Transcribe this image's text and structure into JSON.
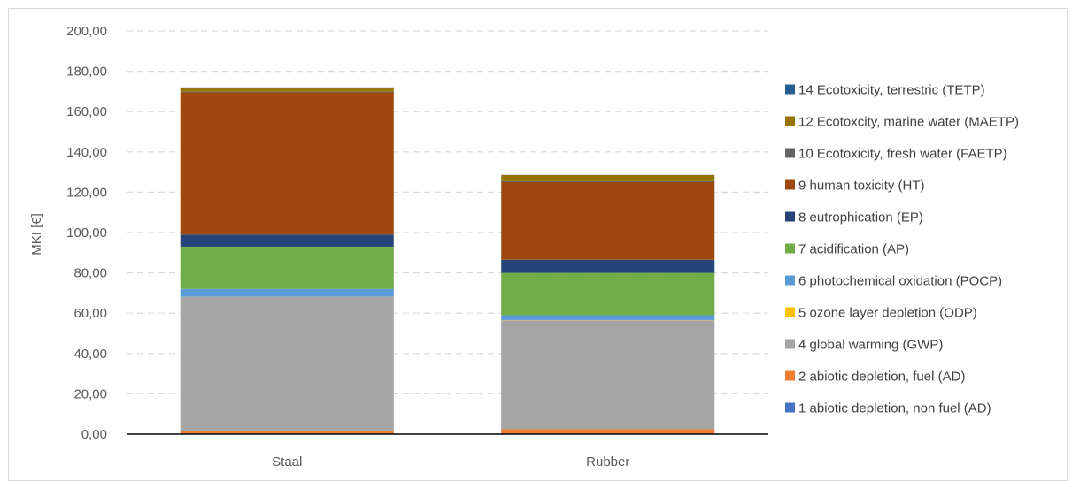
{
  "chart_data": {
    "type": "bar",
    "stacked": true,
    "categories": [
      "Staal",
      "Rubber"
    ],
    "ylabel": "MKI [€]",
    "xlabel": "",
    "ylim": [
      0,
      200
    ],
    "yticks": [
      "0,00",
      "20,00",
      "40,00",
      "60,00",
      "80,00",
      "100,00",
      "120,00",
      "140,00",
      "160,00",
      "180,00",
      "200,00"
    ],
    "grid": true,
    "legend_position": "right",
    "series": [
      {
        "name": "1 abiotic depletion, non fuel (AD)",
        "color": "#4472c4",
        "values": [
          0.3,
          0.3
        ]
      },
      {
        "name": "2 abiotic depletion, fuel (AD)",
        "color": "#ed7d31",
        "values": [
          1.2,
          2.2
        ]
      },
      {
        "name": "4 global warming (GWP)",
        "color": "#a5a5a5",
        "values": [
          66.5,
          54.0
        ]
      },
      {
        "name": "5 ozone layer depletion (ODP)",
        "color": "#ffc000",
        "values": [
          0.1,
          0.1
        ]
      },
      {
        "name": "6 photochemical oxidation (POCP)",
        "color": "#5b9bd5",
        "values": [
          3.9,
          2.4
        ]
      },
      {
        "name": "7 acidification (AP)",
        "color": "#70ad47",
        "values": [
          21.0,
          21.0
        ]
      },
      {
        "name": "8 eutrophication (EP)",
        "color": "#264478",
        "values": [
          6.0,
          6.5
        ]
      },
      {
        "name": "9 human toxicity (HT)",
        "color": "#9e480e",
        "values": [
          70.5,
          38.5
        ]
      },
      {
        "name": "10 Ecotoxicity, fresh water (FAETP)",
        "color": "#636363",
        "values": [
          0.4,
          0.5
        ]
      },
      {
        "name": "12 Ecotoxcity, marine water (MAETP)",
        "color": "#997300",
        "values": [
          2.0,
          3.0
        ]
      },
      {
        "name": "14 Ecotoxicity, terrestric (TETP)",
        "color": "#255e91",
        "values": [
          0.1,
          0.1
        ]
      }
    ]
  }
}
